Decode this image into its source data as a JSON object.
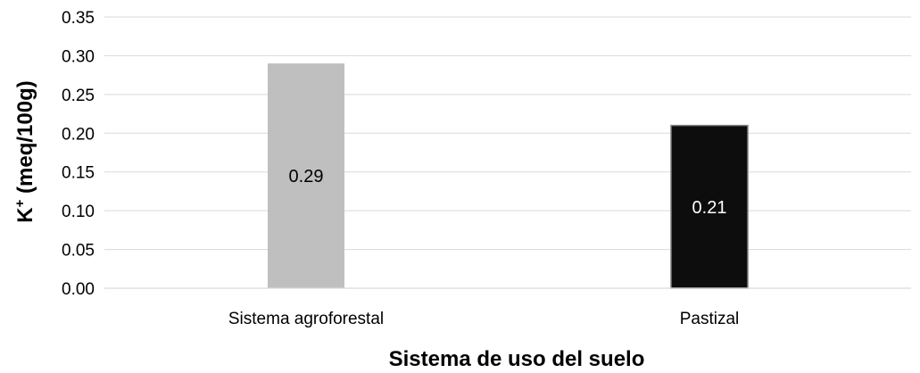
{
  "chart_data": {
    "type": "bar",
    "categories": [
      "Sistema agroforestal",
      "Pastizal"
    ],
    "values": [
      0.29,
      0.21
    ],
    "data_labels": [
      "0.29",
      "0.21"
    ],
    "bar_colors": [
      "#bfbfbf",
      "#0d0d0d"
    ],
    "label_colors": [
      "#000000",
      "#ffffff"
    ],
    "xlabel": "Sistema de uso del suelo",
    "ylabel_main": "K",
    "ylabel_sup": "+",
    "ylabel_rest": " (meq/100g)",
    "ylim": [
      0,
      0.35
    ],
    "yticks": [
      "0.00",
      "0.05",
      "0.10",
      "0.15",
      "0.20",
      "0.25",
      "0.30",
      "0.35"
    ],
    "grid": true,
    "legend": "none",
    "gridline_color": "#d9d9d9"
  }
}
